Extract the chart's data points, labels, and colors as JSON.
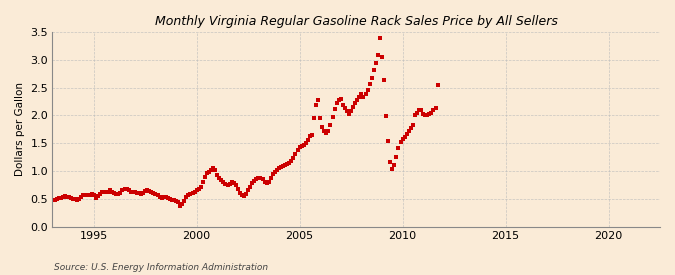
{
  "title": "Monthly Virginia Regular Gasoline Rack Sales Price by All Sellers",
  "ylabel": "Dollars per Gallon",
  "source": "Source: U.S. Energy Information Administration",
  "marker_color": "#cc0000",
  "bg_color": "#faebd7",
  "grid_color": "#bbbbbb",
  "xlim": [
    1993.0,
    2022.5
  ],
  "ylim": [
    0.0,
    3.5
  ],
  "xticks": [
    1995,
    2000,
    2005,
    2010,
    2015,
    2020
  ],
  "yticks": [
    0.0,
    0.5,
    1.0,
    1.5,
    2.0,
    2.5,
    3.0,
    3.5
  ],
  "data": [
    [
      1993.1,
      0.47
    ],
    [
      1993.2,
      0.5
    ],
    [
      1993.3,
      0.51
    ],
    [
      1993.4,
      0.52
    ],
    [
      1993.5,
      0.53
    ],
    [
      1993.6,
      0.55
    ],
    [
      1993.7,
      0.54
    ],
    [
      1993.8,
      0.53
    ],
    [
      1993.9,
      0.51
    ],
    [
      1994.0,
      0.5
    ],
    [
      1994.1,
      0.49
    ],
    [
      1994.2,
      0.48
    ],
    [
      1994.3,
      0.5
    ],
    [
      1994.4,
      0.53
    ],
    [
      1994.5,
      0.56
    ],
    [
      1994.6,
      0.57
    ],
    [
      1994.7,
      0.57
    ],
    [
      1994.8,
      0.57
    ],
    [
      1994.9,
      0.58
    ],
    [
      1995.0,
      0.57
    ],
    [
      1995.1,
      0.52
    ],
    [
      1995.2,
      0.55
    ],
    [
      1995.3,
      0.58
    ],
    [
      1995.4,
      0.62
    ],
    [
      1995.5,
      0.63
    ],
    [
      1995.6,
      0.62
    ],
    [
      1995.7,
      0.63
    ],
    [
      1995.8,
      0.65
    ],
    [
      1995.9,
      0.62
    ],
    [
      1996.0,
      0.6
    ],
    [
      1996.1,
      0.58
    ],
    [
      1996.2,
      0.59
    ],
    [
      1996.3,
      0.61
    ],
    [
      1996.4,
      0.66
    ],
    [
      1996.5,
      0.68
    ],
    [
      1996.6,
      0.67
    ],
    [
      1996.7,
      0.65
    ],
    [
      1996.8,
      0.63
    ],
    [
      1996.9,
      0.62
    ],
    [
      1997.0,
      0.62
    ],
    [
      1997.1,
      0.6
    ],
    [
      1997.2,
      0.6
    ],
    [
      1997.3,
      0.59
    ],
    [
      1997.4,
      0.61
    ],
    [
      1997.5,
      0.64
    ],
    [
      1997.6,
      0.65
    ],
    [
      1997.7,
      0.64
    ],
    [
      1997.8,
      0.63
    ],
    [
      1997.9,
      0.61
    ],
    [
      1998.0,
      0.59
    ],
    [
      1998.1,
      0.57
    ],
    [
      1998.2,
      0.54
    ],
    [
      1998.3,
      0.52
    ],
    [
      1998.4,
      0.53
    ],
    [
      1998.5,
      0.53
    ],
    [
      1998.6,
      0.52
    ],
    [
      1998.7,
      0.5
    ],
    [
      1998.8,
      0.48
    ],
    [
      1998.9,
      0.47
    ],
    [
      1999.0,
      0.46
    ],
    [
      1999.1,
      0.44
    ],
    [
      1999.2,
      0.37
    ],
    [
      1999.3,
      0.4
    ],
    [
      1999.4,
      0.46
    ],
    [
      1999.5,
      0.53
    ],
    [
      1999.6,
      0.57
    ],
    [
      1999.7,
      0.58
    ],
    [
      1999.8,
      0.6
    ],
    [
      1999.9,
      0.63
    ],
    [
      2000.0,
      0.65
    ],
    [
      2000.1,
      0.68
    ],
    [
      2000.2,
      0.72
    ],
    [
      2000.3,
      0.8
    ],
    [
      2000.4,
      0.9
    ],
    [
      2000.5,
      0.96
    ],
    [
      2000.6,
      0.99
    ],
    [
      2000.7,
      1.01
    ],
    [
      2000.8,
      1.05
    ],
    [
      2000.9,
      1.02
    ],
    [
      2001.0,
      0.93
    ],
    [
      2001.1,
      0.88
    ],
    [
      2001.2,
      0.84
    ],
    [
      2001.3,
      0.8
    ],
    [
      2001.4,
      0.77
    ],
    [
      2001.5,
      0.75
    ],
    [
      2001.6,
      0.77
    ],
    [
      2001.7,
      0.8
    ],
    [
      2001.8,
      0.78
    ],
    [
      2001.9,
      0.74
    ],
    [
      2002.0,
      0.68
    ],
    [
      2002.1,
      0.61
    ],
    [
      2002.2,
      0.57
    ],
    [
      2002.3,
      0.55
    ],
    [
      2002.4,
      0.59
    ],
    [
      2002.5,
      0.65
    ],
    [
      2002.6,
      0.72
    ],
    [
      2002.7,
      0.78
    ],
    [
      2002.8,
      0.82
    ],
    [
      2002.9,
      0.85
    ],
    [
      2003.0,
      0.87
    ],
    [
      2003.1,
      0.88
    ],
    [
      2003.2,
      0.85
    ],
    [
      2003.3,
      0.81
    ],
    [
      2003.4,
      0.78
    ],
    [
      2003.5,
      0.8
    ],
    [
      2003.6,
      0.88
    ],
    [
      2003.7,
      0.94
    ],
    [
      2003.8,
      0.98
    ],
    [
      2003.9,
      1.02
    ],
    [
      2004.0,
      1.05
    ],
    [
      2004.1,
      1.07
    ],
    [
      2004.2,
      1.09
    ],
    [
      2004.3,
      1.11
    ],
    [
      2004.4,
      1.13
    ],
    [
      2004.5,
      1.15
    ],
    [
      2004.6,
      1.18
    ],
    [
      2004.7,
      1.24
    ],
    [
      2004.8,
      1.3
    ],
    [
      2004.9,
      1.38
    ],
    [
      2005.0,
      1.43
    ],
    [
      2005.1,
      1.45
    ],
    [
      2005.2,
      1.47
    ],
    [
      2005.3,
      1.5
    ],
    [
      2005.4,
      1.55
    ],
    [
      2005.5,
      1.62
    ],
    [
      2005.6,
      1.65
    ],
    [
      2005.7,
      1.95
    ],
    [
      2005.8,
      2.18
    ],
    [
      2005.9,
      2.28
    ],
    [
      2006.0,
      1.95
    ],
    [
      2006.1,
      1.79
    ],
    [
      2006.2,
      1.71
    ],
    [
      2006.3,
      1.68
    ],
    [
      2006.4,
      1.72
    ],
    [
      2006.5,
      1.82
    ],
    [
      2006.6,
      1.97
    ],
    [
      2006.7,
      2.12
    ],
    [
      2006.8,
      2.22
    ],
    [
      2006.9,
      2.28
    ],
    [
      2007.0,
      2.3
    ],
    [
      2007.1,
      2.19
    ],
    [
      2007.2,
      2.14
    ],
    [
      2007.3,
      2.07
    ],
    [
      2007.4,
      2.03
    ],
    [
      2007.5,
      2.07
    ],
    [
      2007.6,
      2.15
    ],
    [
      2007.7,
      2.22
    ],
    [
      2007.8,
      2.28
    ],
    [
      2007.9,
      2.33
    ],
    [
      2008.0,
      2.38
    ],
    [
      2008.1,
      2.33
    ],
    [
      2008.2,
      2.39
    ],
    [
      2008.3,
      2.45
    ],
    [
      2008.4,
      2.56
    ],
    [
      2008.5,
      2.68
    ],
    [
      2008.6,
      2.82
    ],
    [
      2008.7,
      2.95
    ],
    [
      2008.8,
      3.08
    ],
    [
      2008.9,
      3.4
    ],
    [
      2009.0,
      3.05
    ],
    [
      2009.1,
      2.64
    ],
    [
      2009.2,
      1.99
    ],
    [
      2009.3,
      1.53
    ],
    [
      2009.4,
      1.17
    ],
    [
      2009.5,
      1.04
    ],
    [
      2009.6,
      1.1
    ],
    [
      2009.7,
      1.25
    ],
    [
      2009.8,
      1.42
    ],
    [
      2009.9,
      1.52
    ],
    [
      2010.0,
      1.57
    ],
    [
      2010.1,
      1.61
    ],
    [
      2010.2,
      1.66
    ],
    [
      2010.3,
      1.71
    ],
    [
      2010.4,
      1.77
    ],
    [
      2010.5,
      1.82
    ],
    [
      2010.6,
      2.0
    ],
    [
      2010.7,
      2.05
    ],
    [
      2010.8,
      2.1
    ],
    [
      2010.9,
      2.1
    ],
    [
      2011.0,
      2.03
    ],
    [
      2011.1,
      2.0
    ],
    [
      2011.2,
      2.0
    ],
    [
      2011.3,
      2.02
    ],
    [
      2011.4,
      2.05
    ],
    [
      2011.5,
      2.09
    ],
    [
      2011.6,
      2.13
    ],
    [
      2011.7,
      2.55
    ]
  ]
}
